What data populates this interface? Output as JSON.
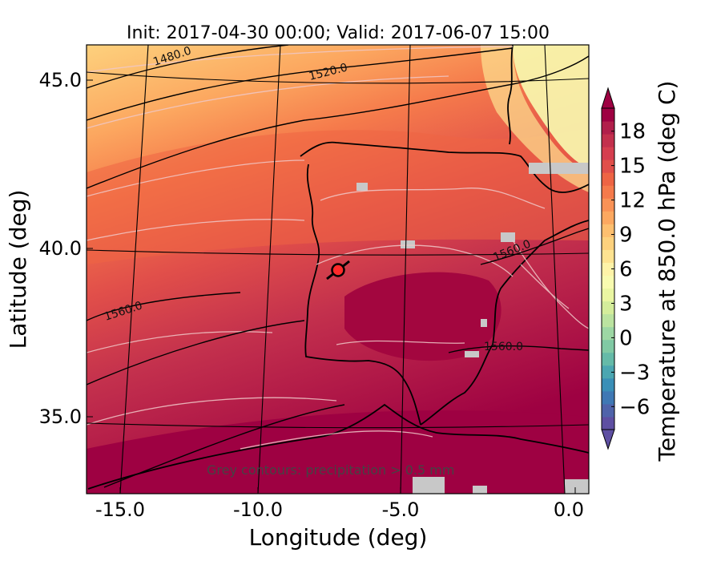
{
  "title": "Init: 2017-04-30 00:00; Valid: 2017-06-07 15:00",
  "xaxis": {
    "label": "Longitude (deg)",
    "ticks": [
      "-15.0",
      "-10.0",
      "-5.0",
      "0.0"
    ]
  },
  "yaxis": {
    "label": "Latitude (deg)",
    "ticks": [
      "45.0",
      "40.0",
      "35.0"
    ]
  },
  "colorbar": {
    "label": "Temperature at 850.0 hPa (deg C)",
    "ticks": [
      "18",
      "15",
      "12",
      "9",
      "6",
      "3",
      "0",
      "−3",
      "−6"
    ],
    "range": [
      -8,
      20
    ],
    "colors": [
      "#5e4fa2",
      "#4f63aa",
      "#3f78b4",
      "#3a8fb7",
      "#4ba6b1",
      "#65baa8",
      "#80c9a4",
      "#9dd7a4",
      "#bbe3a0",
      "#d4ed9b",
      "#eaf6a2",
      "#f8fbb0",
      "#fef3a8",
      "#fee391",
      "#fdd17d",
      "#fdbf6f",
      "#fca860",
      "#f99256",
      "#f57a4b",
      "#ee6444",
      "#e14f4a",
      "#d53e4f",
      "#c3304d",
      "#b11f4b",
      "#9e0142"
    ]
  },
  "contour_labels": [
    "1480.0",
    "1520.0",
    "1560.0",
    "1560.0",
    "1560.0"
  ],
  "note": "Grey contours: precipitation > 0.5 mm",
  "marker": {
    "lon": -7.6,
    "lat": 39.4,
    "color": "#ff2a2a"
  }
}
